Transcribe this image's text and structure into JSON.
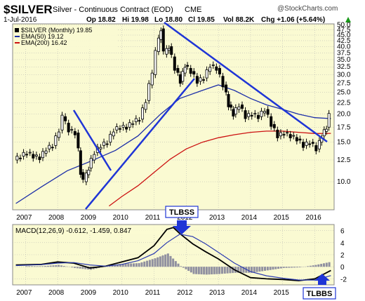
{
  "header": {
    "symbol": "$SILVER",
    "description": "Silver - Continuous Contract (EOD)",
    "exchange": "CME",
    "source": "@StockCharts.com",
    "date": "1-Jul-2016",
    "ohlc": {
      "open": "Op 18.82",
      "high": "Hi 19.98",
      "low": "Lo 18.80",
      "close": "Cl 19.85",
      "volume": "Vol 88.2K",
      "change": "Chg +1.06 (+5.64%)"
    },
    "change_arrow": "up-arrow-icon"
  },
  "legend": {
    "price": "$SILVER (Monthly) 19.85",
    "ema50": "EMA(50) 19.12",
    "ema200": "EMA(200) 16.42"
  },
  "annotations": {
    "top_label": "TLBSS",
    "bottom_label": "TLBBS"
  },
  "colors": {
    "panel_bg": "#fafad2",
    "candle": "#000000",
    "ema50": "#1c2ea8",
    "ema200": "#cc1111",
    "trendline": "#1f35d6",
    "macd_line": "#000000",
    "signal_line": "#2a3ab0",
    "histogram": "#9090a0",
    "grid": "#b0b0b0"
  },
  "chart_data": [
    {
      "type": "line",
      "name": "price",
      "title": "$SILVER Silver - Continuous Contract (EOD) CME",
      "x_ticks": [
        "2007",
        "2008",
        "2009",
        "2010",
        "2011",
        "2012",
        "2013",
        "2014",
        "2015",
        "2016"
      ],
      "y_ticks": [
        10.0,
        12.5,
        15.0,
        17.5,
        20.0,
        22.5,
        25.0,
        27.5,
        30.0,
        32.5,
        35.0,
        37.5,
        40.0,
        42.5,
        45.0,
        47.5,
        50.0
      ],
      "y_tick_labels": [
        "10.0",
        "12.5",
        "15.0",
        "17.5",
        "20.0",
        "22.5",
        "25.0",
        "27.5",
        "30.0",
        "32.5",
        "35.0",
        "37.5",
        "40.0",
        "42.5",
        "45.0",
        "47.5",
        "50.0"
      ],
      "yscale": "log",
      "ylim": [
        7.5,
        50.5
      ],
      "xlim": [
        2006.6,
        2016.6
      ],
      "grid": true,
      "series": [
        {
          "name": "$SILVER (Monthly)",
          "x": [
            2006.7,
            2006.9,
            2007.1,
            2007.3,
            2007.5,
            2007.7,
            2007.9,
            2008.1,
            2008.2,
            2008.4,
            2008.6,
            2008.75,
            2008.85,
            2009.0,
            2009.2,
            2009.4,
            2009.6,
            2009.8,
            2010.0,
            2010.2,
            2010.4,
            2010.6,
            2010.8,
            2010.9,
            2011.0,
            2011.1,
            2011.25,
            2011.35,
            2011.5,
            2011.7,
            2011.85,
            2012.0,
            2012.2,
            2012.4,
            2012.6,
            2012.8,
            2013.0,
            2013.2,
            2013.35,
            2013.5,
            2013.7,
            2013.9,
            2014.1,
            2014.3,
            2014.5,
            2014.7,
            2014.9,
            2015.1,
            2015.3,
            2015.5,
            2015.7,
            2015.9,
            2016.1,
            2016.25,
            2016.4,
            2016.5
          ],
          "y": [
            12.5,
            13.0,
            13.5,
            13.0,
            12.8,
            14.0,
            14.5,
            17.0,
            19.5,
            17.0,
            16.5,
            11.0,
            10.0,
            11.5,
            13.5,
            14.5,
            15.0,
            17.0,
            17.5,
            17.5,
            18.5,
            19.0,
            23.0,
            27.0,
            30.0,
            38.0,
            48.0,
            37.0,
            40.0,
            32.0,
            28.0,
            33.0,
            31.0,
            28.0,
            29.0,
            33.0,
            32.0,
            27.0,
            22.0,
            20.0,
            22.0,
            19.5,
            20.0,
            19.5,
            21.0,
            18.0,
            16.0,
            16.5,
            16.0,
            15.5,
            14.5,
            15.0,
            14.0,
            16.0,
            17.5,
            19.85
          ]
        },
        {
          "name": "EMA(50)",
          "x": [
            2006.7,
            2007.5,
            2008.3,
            2009.0,
            2009.8,
            2010.5,
            2011.2,
            2011.8,
            2012.5,
            2013.0,
            2013.5,
            2014.0,
            2014.5,
            2015.0,
            2015.5,
            2016.0,
            2016.5
          ],
          "y": [
            8.0,
            9.5,
            11.2,
            12.3,
            13.8,
            16.0,
            20.0,
            23.5,
            25.5,
            27.0,
            25.5,
            23.5,
            22.0,
            21.0,
            20.0,
            19.3,
            19.12
          ]
        },
        {
          "name": "EMA(200)",
          "x": [
            2009.6,
            2010.0,
            2010.5,
            2011.0,
            2011.5,
            2012.0,
            2012.5,
            2013.0,
            2013.5,
            2014.0,
            2014.5,
            2015.0,
            2015.5,
            2016.0,
            2016.5
          ],
          "y": [
            7.8,
            8.6,
            9.6,
            11.0,
            12.6,
            14.0,
            15.0,
            15.7,
            16.2,
            16.6,
            16.8,
            16.8,
            16.6,
            16.4,
            16.42
          ]
        }
      ]
    },
    {
      "type": "bar",
      "name": "macd",
      "title": "MACD(12,26,9) -0.612, -1.459, 0.847",
      "x_ticks": [
        "2007",
        "2008",
        "2009",
        "2010",
        "2011",
        "2012",
        "2013",
        "2014",
        "2015",
        "2016"
      ],
      "y_ticks": [
        -2,
        0,
        2,
        4,
        6
      ],
      "ylim": [
        -3.0,
        7.0
      ],
      "series": [
        {
          "name": "MACD",
          "x": [
            2006.7,
            2007.5,
            2008.0,
            2008.5,
            2009.0,
            2009.5,
            2010.0,
            2010.5,
            2011.0,
            2011.4,
            2011.6,
            2011.8,
            2012.2,
            2012.6,
            2013.0,
            2013.5,
            2014.0,
            2014.5,
            2015.0,
            2015.5,
            2016.0,
            2016.5
          ],
          "y": [
            0.3,
            0.4,
            0.8,
            0.6,
            -0.2,
            0.1,
            0.8,
            1.5,
            3.5,
            6.2,
            6.5,
            5.5,
            3.8,
            2.5,
            1.3,
            -0.5,
            -1.8,
            -2.0,
            -2.1,
            -2.3,
            -2.0,
            -0.61
          ]
        },
        {
          "name": "Signal",
          "x": [
            2006.7,
            2007.5,
            2008.0,
            2008.5,
            2009.0,
            2009.5,
            2010.0,
            2010.5,
            2011.0,
            2011.4,
            2011.8,
            2012.2,
            2012.6,
            2013.0,
            2013.5,
            2014.0,
            2014.5,
            2015.0,
            2015.5,
            2016.0,
            2016.5
          ],
          "y": [
            0.2,
            0.35,
            0.6,
            0.7,
            0.3,
            0.1,
            0.4,
            1.0,
            2.2,
            4.0,
            5.4,
            5.0,
            3.8,
            2.4,
            0.6,
            -0.8,
            -1.5,
            -1.9,
            -2.2,
            -2.2,
            -1.46
          ]
        },
        {
          "name": "Histogram",
          "x": [
            2007.0,
            2007.5,
            2008.0,
            2008.5,
            2009.0,
            2009.5,
            2010.0,
            2010.5,
            2011.0,
            2011.4,
            2011.8,
            2012.2,
            2012.6,
            2013.0,
            2013.5,
            2014.0,
            2014.5,
            2015.0,
            2015.5,
            2016.0,
            2016.5
          ],
          "y": [
            0.1,
            0.1,
            0.3,
            -0.2,
            -0.5,
            0.1,
            0.5,
            0.6,
            1.4,
            2.2,
            0.1,
            -1.2,
            -1.3,
            -1.2,
            -1.0,
            -1.0,
            -0.6,
            -0.2,
            -0.1,
            0.3,
            0.85
          ]
        }
      ]
    }
  ]
}
